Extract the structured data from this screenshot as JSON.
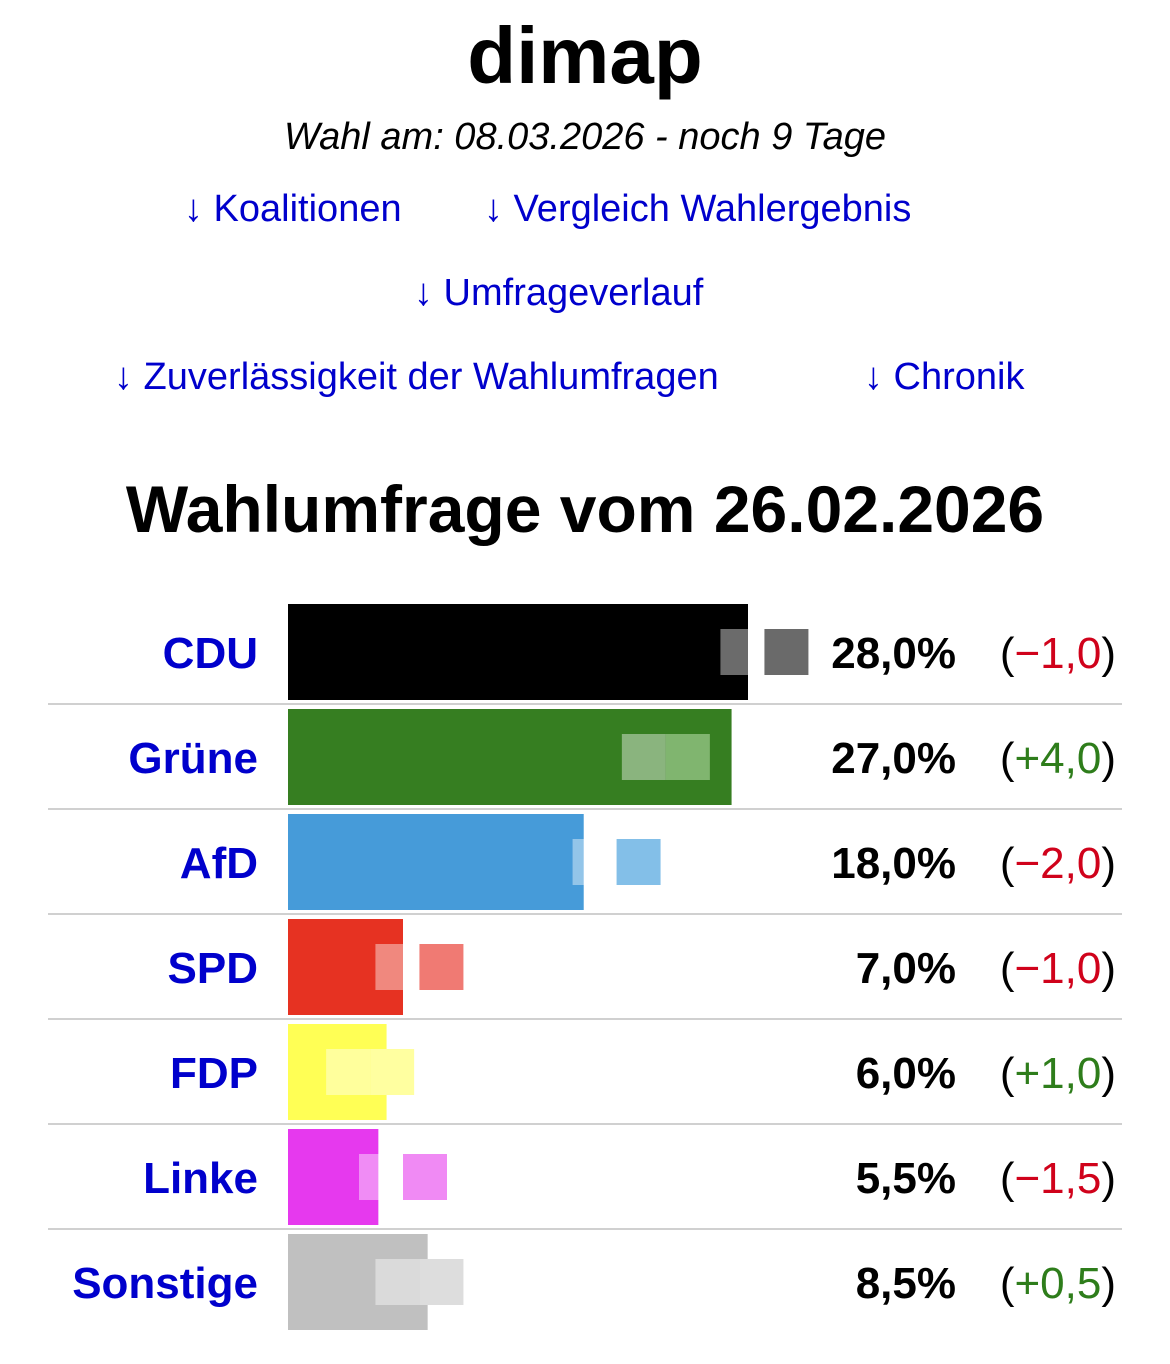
{
  "header": {
    "title": "dimap",
    "subtitle": "Wahl am: 08.03.2026 - noch 9 Tage"
  },
  "nav": {
    "links": [
      "↓ Koalitionen",
      "↓ Vergleich Wahlergebnis",
      "↓ Umfrageverlauf",
      "↓ Zuverlässigkeit der Wahlumfragen",
      "↓ Chronik"
    ]
  },
  "colors": {
    "link": "#0000cc",
    "negative_change": "#d0021b",
    "positive_change": "#2e7d1b",
    "divider": "#d0d0d0"
  },
  "chart_data": {
    "type": "bar",
    "title": "Wahlumfrage vom 26.02.2026",
    "orientation": "horizontal",
    "categories": [
      "CDU",
      "Grüne",
      "AfD",
      "SPD",
      "FDP",
      "Linke",
      "Sonstige"
    ],
    "values": [
      28.0,
      27.0,
      18.0,
      7.0,
      6.0,
      5.5,
      8.5
    ],
    "value_labels": [
      "28,0%",
      "27,0%",
      "18,0%",
      "7,0%",
      "6,0%",
      "5,5%",
      "8,5%"
    ],
    "changes": [
      -1.0,
      4.0,
      -2.0,
      -1.0,
      1.0,
      -1.5,
      0.5
    ],
    "change_labels": [
      "−1,0",
      "+4,0",
      "−2,0",
      "−1,0",
      "+1,0",
      "−1,5",
      "+0,5"
    ],
    "colors": [
      "#000000",
      "#367e21",
      "#469bd9",
      "#e63222",
      "#ffff55",
      "#e639ee",
      "#c0c0c0"
    ],
    "previous_marker_colors": [
      "#6a6a6a",
      "#80b56f",
      "#83bfe8",
      "#f07a73",
      "#ffffa0",
      "#f08af4",
      "#dddddd"
    ],
    "xlim": [
      0,
      28.0
    ]
  }
}
